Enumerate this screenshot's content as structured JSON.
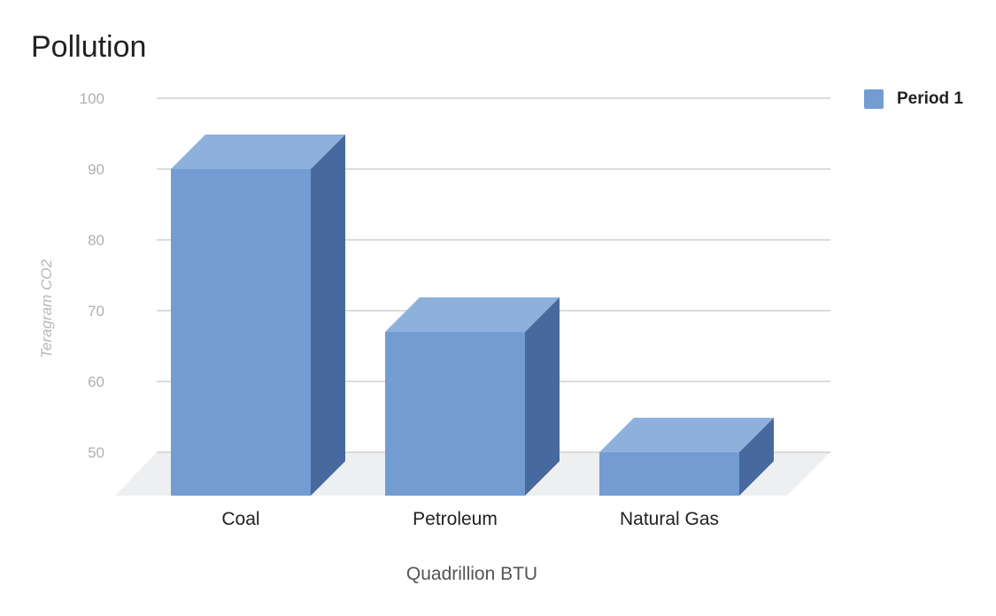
{
  "chart_data": {
    "type": "bar",
    "title": "Pollution",
    "xlabel": "Quadrillion BTU",
    "ylabel": "Teragram CO2",
    "categories": [
      "Coal",
      "Petroleum",
      "Natural Gas"
    ],
    "series": [
      {
        "name": "Period 1",
        "values": [
          90,
          67,
          50
        ],
        "color": "#739cd2"
      }
    ],
    "ylim": [
      50,
      100
    ],
    "yticks": [
      50,
      60,
      70,
      80,
      90,
      100
    ],
    "grid": true,
    "legend": "right",
    "colors": {
      "front": "#739cd2",
      "top": "#8eb0dc",
      "side": "#48699d",
      "floor": "#eeeff1",
      "grid": "#d0d0d0"
    }
  }
}
